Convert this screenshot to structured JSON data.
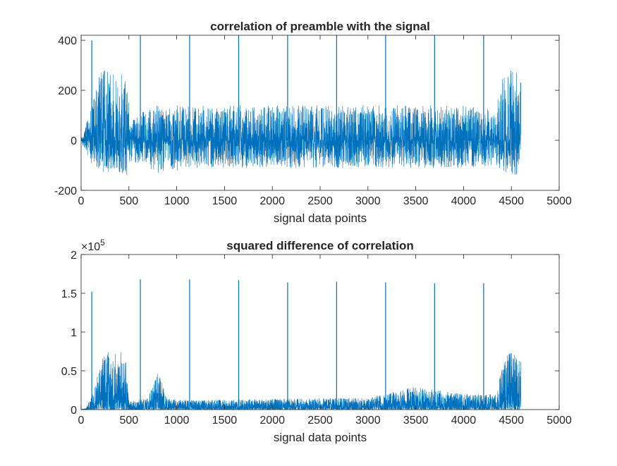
{
  "chart_data": [
    {
      "type": "line",
      "title": "correlation of preamble with the signal",
      "xlabel": "signal data points",
      "ylabel": "",
      "xlim": [
        0,
        5000
      ],
      "ylim": [
        -200,
        420
      ],
      "xticks": [
        "0",
        "500",
        "1000",
        "1500",
        "2000",
        "2500",
        "3000",
        "3500",
        "4000",
        "4500",
        "5000"
      ],
      "yticks": [
        "-200",
        "0",
        "200",
        "400"
      ],
      "xtick_values": [
        0,
        500,
        1000,
        1500,
        2000,
        2500,
        3000,
        3500,
        4000,
        4500,
        5000
      ],
      "ytick_values": [
        -200,
        0,
        200,
        400
      ],
      "color": "#0072BD",
      "grid": false,
      "n_points": 4600,
      "envelope": [
        {
          "x": 0,
          "lo": -5,
          "hi": 5
        },
        {
          "x": 30,
          "lo": -30,
          "hi": 40
        },
        {
          "x": 100,
          "lo": -90,
          "hi": 120
        },
        {
          "x": 180,
          "lo": -120,
          "hi": 260
        },
        {
          "x": 250,
          "lo": -130,
          "hi": 285
        },
        {
          "x": 400,
          "lo": -130,
          "hi": 285
        },
        {
          "x": 480,
          "lo": -150,
          "hi": 230
        },
        {
          "x": 520,
          "lo": -90,
          "hi": 70
        },
        {
          "x": 600,
          "lo": -90,
          "hi": 110
        },
        {
          "x": 800,
          "lo": -130,
          "hi": 140
        },
        {
          "x": 1200,
          "lo": -110,
          "hi": 140
        },
        {
          "x": 2000,
          "lo": -110,
          "hi": 140
        },
        {
          "x": 3000,
          "lo": -110,
          "hi": 140
        },
        {
          "x": 4000,
          "lo": -110,
          "hi": 140
        },
        {
          "x": 4340,
          "lo": -100,
          "hi": 120
        },
        {
          "x": 4400,
          "lo": -120,
          "hi": 250
        },
        {
          "x": 4500,
          "lo": -140,
          "hi": 285
        },
        {
          "x": 4590,
          "lo": -140,
          "hi": 270
        }
      ],
      "peaks": [
        {
          "x": 112,
          "y": 400
        },
        {
          "x": 620,
          "y": 420
        },
        {
          "x": 1135,
          "y": 420
        },
        {
          "x": 1648,
          "y": 420
        },
        {
          "x": 2160,
          "y": 420
        },
        {
          "x": 2672,
          "y": 420
        },
        {
          "x": 3185,
          "y": 420
        },
        {
          "x": 3697,
          "y": 420
        },
        {
          "x": 4210,
          "y": 420
        }
      ]
    },
    {
      "type": "line",
      "title": "squared difference of correlation",
      "xlabel": "signal data points",
      "ylabel": "",
      "xlim": [
        0,
        5000
      ],
      "ylim": [
        0,
        2
      ],
      "y_scale_label": {
        "base": "×10",
        "exponent": "5"
      },
      "xticks": [
        "0",
        "500",
        "1000",
        "1500",
        "2000",
        "2500",
        "3000",
        "3500",
        "4000",
        "4500",
        "5000"
      ],
      "yticks": [
        "0",
        "0.5",
        "1",
        "1.5",
        "2"
      ],
      "xtick_values": [
        0,
        500,
        1000,
        1500,
        2000,
        2500,
        3000,
        3500,
        4000,
        4500,
        5000
      ],
      "ytick_values": [
        0,
        0.5,
        1,
        1.5,
        2
      ],
      "color": "#0072BD",
      "grid": false,
      "n_points": 4600,
      "envelope": [
        {
          "x": 0,
          "hi": 0.0
        },
        {
          "x": 50,
          "hi": 0.02
        },
        {
          "x": 120,
          "hi": 0.2
        },
        {
          "x": 200,
          "hi": 0.6
        },
        {
          "x": 250,
          "hi": 0.76
        },
        {
          "x": 460,
          "hi": 0.75
        },
        {
          "x": 500,
          "hi": 0.1
        },
        {
          "x": 700,
          "hi": 0.15
        },
        {
          "x": 800,
          "hi": 0.5
        },
        {
          "x": 900,
          "hi": 0.15
        },
        {
          "x": 1200,
          "hi": 0.12
        },
        {
          "x": 2000,
          "hi": 0.14
        },
        {
          "x": 3000,
          "hi": 0.15
        },
        {
          "x": 3500,
          "hi": 0.3
        },
        {
          "x": 4000,
          "hi": 0.2
        },
        {
          "x": 4350,
          "hi": 0.2
        },
        {
          "x": 4420,
          "hi": 0.7
        },
        {
          "x": 4480,
          "hi": 0.8
        },
        {
          "x": 4600,
          "hi": 0.65
        }
      ],
      "peaks": [
        {
          "x": 112,
          "y": 1.52
        },
        {
          "x": 620,
          "y": 1.68
        },
        {
          "x": 1135,
          "y": 1.68
        },
        {
          "x": 1648,
          "y": 1.67
        },
        {
          "x": 2160,
          "y": 1.64
        },
        {
          "x": 2672,
          "y": 1.65
        },
        {
          "x": 3185,
          "y": 1.64
        },
        {
          "x": 3697,
          "y": 1.63
        },
        {
          "x": 4210,
          "y": 1.63
        }
      ]
    }
  ]
}
